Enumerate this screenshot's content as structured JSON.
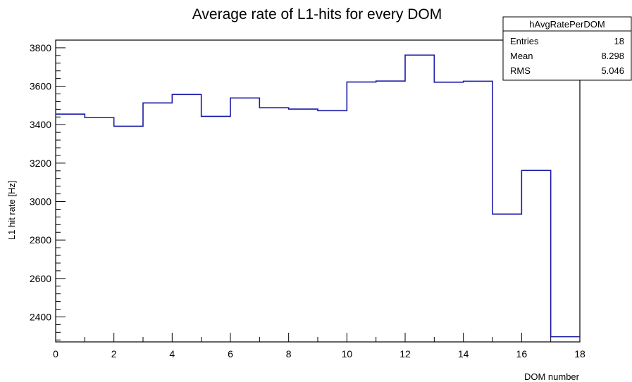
{
  "chart_data": {
    "type": "histogram-step",
    "title": "Average rate of L1-hits for every DOM",
    "xlabel": "DOM number",
    "ylabel": "L1 hit rate [Hz]",
    "xlim": [
      0,
      18
    ],
    "ylim": [
      2270,
      3840
    ],
    "x_ticks": [
      0,
      2,
      4,
      6,
      8,
      10,
      12,
      14,
      16,
      18
    ],
    "y_ticks": [
      2400,
      2600,
      2800,
      3000,
      3200,
      3400,
      3600,
      3800
    ],
    "bin_edges": [
      0,
      1,
      2,
      3,
      4,
      5,
      6,
      7,
      8,
      9,
      10,
      11,
      12,
      13,
      14,
      15,
      16,
      17,
      18
    ],
    "values": [
      3455,
      3437,
      3392,
      3513,
      3557,
      3443,
      3539,
      3488,
      3481,
      3473,
      3622,
      3627,
      3762,
      3621,
      3626,
      2935,
      3162,
      2297
    ],
    "line_color": "#1a1aa8",
    "stats_box": {
      "name": "hAvgRatePerDOM",
      "rows": [
        {
          "label": "Entries",
          "value": "18"
        },
        {
          "label": "Mean",
          "value": "8.298"
        },
        {
          "label": "RMS",
          "value": "5.046"
        }
      ]
    }
  }
}
